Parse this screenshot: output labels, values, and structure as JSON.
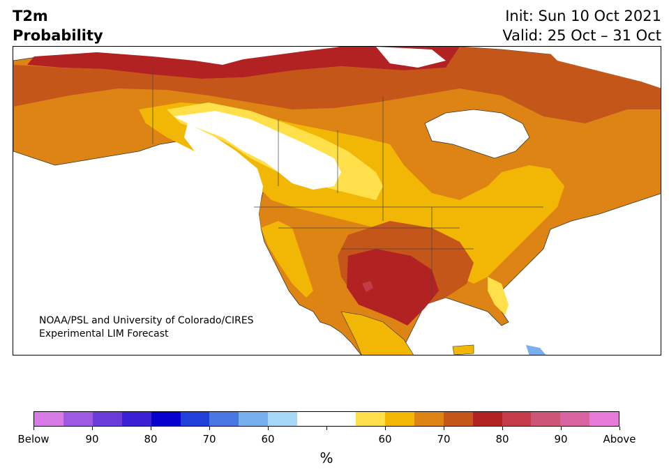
{
  "title": {
    "variable": "T2m",
    "product": "Probability",
    "init": "Init: Sun 10 Oct 2021",
    "valid": "Valid: 25 Oct – 31 Oct"
  },
  "map": {
    "region": "North America",
    "credit_line1": "NOAA/PSL and University of Colorado/CIRES",
    "credit_line2": "Experimental LIM Forecast"
  },
  "colorbar": {
    "unit": "%",
    "colors": [
      "#d77be6",
      "#9d5ae2",
      "#6a3ddb",
      "#3a21d3",
      "#0500cd",
      "#2040d9",
      "#4a78e2",
      "#78b0ee",
      "#a8d8f8",
      "#ffffff",
      "#ffffff",
      "#ffe04a",
      "#f2b705",
      "#de8414",
      "#c4561a",
      "#b22222",
      "#c43b4a",
      "#cd5577",
      "#d962a0",
      "#e67ad8"
    ],
    "tick_labels": [
      "Below",
      "90",
      "80",
      "70",
      "60",
      "",
      "60",
      "70",
      "80",
      "90",
      "Above"
    ]
  },
  "legend_colors": {
    "p55_60": "#ffe04a",
    "p60_65": "#f2b705",
    "p65_70": "#de8414",
    "p70_75": "#c4561a",
    "p75_80": "#b22222",
    "p80_85": "#c43b4a",
    "below_55_60": "#a8d8f8",
    "below_60_65": "#78b0ee"
  }
}
